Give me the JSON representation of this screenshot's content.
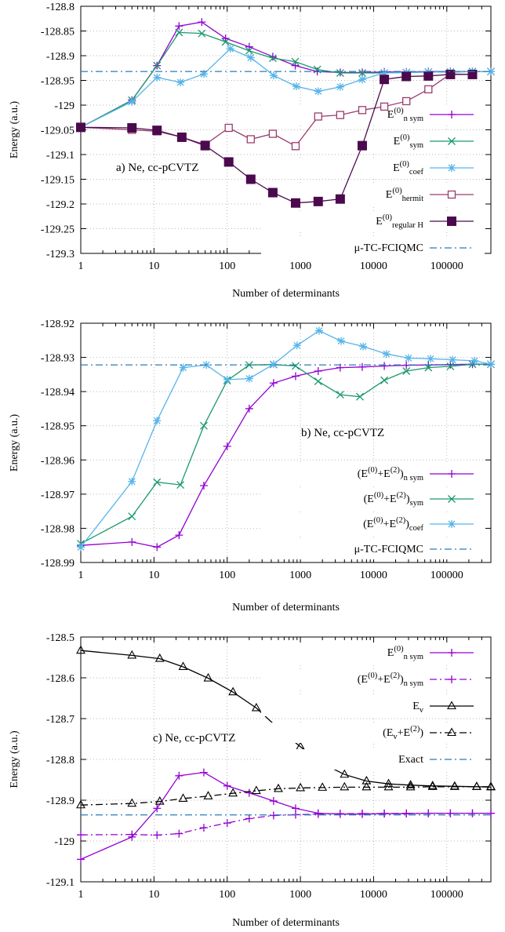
{
  "colors": {
    "purple": "#9400d3",
    "green": "#1a9a6b",
    "lightblue": "#56b4e9",
    "brown": "#9b3c6d",
    "darkpurple": "#4b0a4d",
    "dashblue": "#2b7bb9",
    "black": "#000000",
    "grid": "#a0a0a0"
  },
  "chart_data": [
    {
      "type": "line",
      "panel": "a",
      "annotation": "a) Ne, cc-pCVTZ",
      "xlabel": "Number of determinants",
      "ylabel": "Energy (a.u.)",
      "xscale": "log",
      "xlim": [
        1,
        400000
      ],
      "ylim": [
        -129.3,
        -128.8
      ],
      "xticks": [
        {
          "v": 1,
          "label": "1"
        },
        {
          "v": 10,
          "label": "10"
        },
        {
          "v": 100,
          "label": "100"
        },
        {
          "v": 1000,
          "label": "1000"
        },
        {
          "v": 10000,
          "label": "10000"
        },
        {
          "v": 100000,
          "label": "100000"
        }
      ],
      "yticks": [
        {
          "v": -128.8,
          "label": "-128.8"
        },
        {
          "v": -128.85,
          "label": "-128.85"
        },
        {
          "v": -128.9,
          "label": "-128.9"
        },
        {
          "v": -128.95,
          "label": "-128.95"
        },
        {
          "v": -129.0,
          "label": "-129"
        },
        {
          "v": -129.05,
          "label": "-129.05"
        },
        {
          "v": -129.1,
          "label": "-129.1"
        },
        {
          "v": -129.15,
          "label": "-129.15"
        },
        {
          "v": -129.2,
          "label": "-129.2"
        },
        {
          "v": -129.25,
          "label": "-129.25"
        },
        {
          "v": -129.3,
          "label": "-129.3"
        }
      ],
      "grid": true,
      "legend_position": "right",
      "series": [
        {
          "base": "E",
          "sup": "(0)",
          "sub": "n sym",
          "color": "purple",
          "marker": "plus",
          "line": "solid",
          "x": [
            1,
            5,
            11,
            22,
            45,
            95,
            200,
            420,
            850,
            1700,
            3500,
            7000,
            14000,
            28000,
            56000,
            112000,
            224000,
            400000
          ],
          "y": [
            -129.045,
            -128.99,
            -128.92,
            -128.84,
            -128.832,
            -128.865,
            -128.882,
            -128.902,
            -128.92,
            -128.932,
            -128.934,
            -128.934,
            -128.933,
            -128.933,
            -128.932,
            -128.932,
            -128.932,
            -128.932
          ]
        },
        {
          "base": "E",
          "sup": "(0)",
          "sub": "sym",
          "color": "green",
          "marker": "x",
          "line": "solid",
          "x": [
            1,
            5,
            11,
            22,
            45,
            95,
            200,
            420,
            850,
            1700,
            3500,
            7000,
            14000,
            28000,
            56000,
            112000,
            224000,
            400000
          ],
          "y": [
            -129.045,
            -128.99,
            -128.92,
            -128.853,
            -128.855,
            -128.872,
            -128.89,
            -128.905,
            -128.912,
            -128.928,
            -128.935,
            -128.935,
            -128.935,
            -128.934,
            -128.933,
            -128.933,
            -128.932,
            -128.932
          ]
        },
        {
          "base": "E",
          "sup": "(0)",
          "sub": "coef",
          "color": "lightblue",
          "marker": "star",
          "line": "solid",
          "x": [
            1,
            5,
            11,
            23,
            48,
            110,
            210,
            430,
            880,
            1750,
            3500,
            7000,
            14000,
            28000,
            56000,
            112000,
            224000,
            400000
          ],
          "y": [
            -129.045,
            -128.993,
            -128.944,
            -128.954,
            -128.937,
            -128.886,
            -128.904,
            -128.94,
            -128.962,
            -128.972,
            -128.963,
            -128.948,
            -128.935,
            -128.934,
            -128.933,
            -128.933,
            -128.932,
            -128.932
          ]
        },
        {
          "base": "E",
          "sup": "(0)",
          "sub": "hermit",
          "color": "brown",
          "marker": "square-open",
          "line": "solid",
          "x": [
            1,
            5,
            11,
            24,
            50,
            105,
            210,
            420,
            860,
            1750,
            3500,
            7000,
            14000,
            28000,
            56000,
            112000,
            224000
          ],
          "y": [
            -129.045,
            -129.05,
            -129.053,
            -129.065,
            -129.08,
            -129.046,
            -129.069,
            -129.058,
            -129.083,
            -129.023,
            -129.02,
            -129.01,
            -129.003,
            -128.992,
            -128.968,
            -128.937,
            -128.938
          ]
        },
        {
          "base": "E",
          "sup": "(0)",
          "sub": "regular H",
          "color": "darkpurple",
          "marker": "square-filled",
          "line": "solid",
          "x": [
            1,
            5,
            11,
            24,
            50,
            105,
            210,
            420,
            860,
            1750,
            3500,
            7000,
            14000,
            28000,
            56000,
            112000,
            224000
          ],
          "y": [
            -129.045,
            -129.046,
            -129.051,
            -129.065,
            -129.082,
            -129.115,
            -129.15,
            -129.177,
            -129.198,
            -129.195,
            -129.19,
            -129.082,
            -128.948,
            -128.942,
            -128.941,
            -128.938,
            -128.938
          ]
        },
        {
          "base": "μ-TC-FCIQMC",
          "sup": "",
          "sub": "",
          "color": "dashblue",
          "marker": "none",
          "line": "dashdot",
          "hline": -128.932
        }
      ]
    },
    {
      "type": "line",
      "panel": "b",
      "annotation": "b) Ne, cc-pCVTZ",
      "xlabel": "Number of determinants",
      "ylabel": "Energy (a.u.)",
      "xscale": "log",
      "xlim": [
        1,
        400000
      ],
      "ylim": [
        -128.99,
        -128.92
      ],
      "xticks": [
        {
          "v": 1,
          "label": "1"
        },
        {
          "v": 10,
          "label": "10"
        },
        {
          "v": 100,
          "label": "100"
        },
        {
          "v": 1000,
          "label": "1000"
        },
        {
          "v": 10000,
          "label": "10000"
        },
        {
          "v": 100000,
          "label": "100000"
        }
      ],
      "yticks": [
        {
          "v": -128.92,
          "label": "-128.92"
        },
        {
          "v": -128.93,
          "label": "-128.93"
        },
        {
          "v": -128.94,
          "label": "-128.94"
        },
        {
          "v": -128.95,
          "label": "-128.95"
        },
        {
          "v": -128.96,
          "label": "-128.96"
        },
        {
          "v": -128.97,
          "label": "-128.97"
        },
        {
          "v": -128.98,
          "label": "-128.98"
        },
        {
          "v": -128.99,
          "label": "-128.99"
        }
      ],
      "grid": true,
      "legend_position": "bottom-right",
      "series": [
        {
          "base": "(E",
          "sup": "(0)",
          "mid": "+E",
          "sup2": "(2)",
          "close": ")",
          "sub": "n sym",
          "color": "purple",
          "marker": "plus",
          "line": "solid",
          "x": [
            1,
            5,
            11,
            22,
            48,
            100,
            200,
            430,
            860,
            1750,
            3500,
            7000,
            14000,
            28000,
            56000,
            112000,
            224000,
            400000
          ],
          "y": [
            -128.985,
            -128.984,
            -128.9855,
            -128.982,
            -128.9675,
            -128.956,
            -128.945,
            -128.9375,
            -128.9355,
            -128.934,
            -128.933,
            -128.9328,
            -128.9325,
            -128.9323,
            -128.9322,
            -128.9321,
            -128.932,
            -128.932
          ]
        },
        {
          "base": "(E",
          "sup": "(0)",
          "mid": "+E",
          "sup2": "(2)",
          "close": ")",
          "sub": "sym",
          "color": "green",
          "marker": "x",
          "line": "solid",
          "x": [
            1,
            5,
            11,
            23,
            48,
            100,
            200,
            430,
            860,
            1750,
            3500,
            6500,
            14000,
            28000,
            56000,
            112000,
            224000,
            400000
          ],
          "y": [
            -128.9845,
            -128.9765,
            -128.9665,
            -128.9673,
            -128.95,
            -128.9368,
            -128.9322,
            -128.9321,
            -128.9325,
            -128.937,
            -128.9409,
            -128.9415,
            -128.9367,
            -128.934,
            -128.933,
            -128.9326,
            -128.932,
            -128.932
          ]
        },
        {
          "base": "(E",
          "sup": "(0)",
          "mid": "+E",
          "sup2": "(2)",
          "close": ")",
          "sub": "coef",
          "color": "lightblue",
          "marker": "star",
          "line": "solid",
          "x": [
            1,
            5,
            11,
            25,
            52,
            100,
            200,
            430,
            900,
            1800,
            3600,
            7200,
            15000,
            30000,
            60000,
            120000,
            240000,
            400000
          ],
          "y": [
            -128.9855,
            -128.9663,
            -128.9485,
            -128.933,
            -128.9322,
            -128.9365,
            -128.9362,
            -128.932,
            -128.9265,
            -128.9222,
            -128.9252,
            -128.9268,
            -128.929,
            -128.9302,
            -128.9304,
            -128.9307,
            -128.931,
            -128.932
          ]
        },
        {
          "base": "μ-TC-FCIQMC",
          "sup": "",
          "sub": "",
          "color": "dashblue",
          "marker": "none",
          "line": "dashdot",
          "hline": -128.9322
        }
      ]
    },
    {
      "type": "line",
      "panel": "c",
      "annotation": "c) Ne, cc-pCVTZ",
      "xlabel": "Number of determinants",
      "ylabel": "Energy (a.u.)",
      "xscale": "log",
      "xlim": [
        1,
        400000
      ],
      "ylim": [
        -129.1,
        -128.5
      ],
      "xticks": [
        {
          "v": 1,
          "label": "1"
        },
        {
          "v": 10,
          "label": "10"
        },
        {
          "v": 100,
          "label": "100"
        },
        {
          "v": 1000,
          "label": "1000"
        },
        {
          "v": 10000,
          "label": "10000"
        },
        {
          "v": 100000,
          "label": "100000"
        }
      ],
      "yticks": [
        {
          "v": -128.5,
          "label": "-128.5"
        },
        {
          "v": -128.6,
          "label": "-128.6"
        },
        {
          "v": -128.7,
          "label": "-128.7"
        },
        {
          "v": -128.8,
          "label": "-128.8"
        },
        {
          "v": -128.9,
          "label": "-128.9"
        },
        {
          "v": -129.0,
          "label": "-129"
        },
        {
          "v": -129.1,
          "label": "-129.1"
        }
      ],
      "grid": true,
      "legend_position": "top-right",
      "series": [
        {
          "base": "E",
          "sup": "(0)",
          "sub": "n sym",
          "color": "purple",
          "marker": "plus",
          "line": "solid",
          "x": [
            1,
            5,
            11,
            22,
            48,
            100,
            200,
            430,
            860,
            1750,
            3500,
            7000,
            14000,
            28000,
            56000,
            112000,
            224000,
            400000
          ],
          "y": [
            -129.045,
            -128.99,
            -128.92,
            -128.84,
            -128.832,
            -128.865,
            -128.882,
            -128.902,
            -128.92,
            -128.932,
            -128.934,
            -128.934,
            -128.933,
            -128.933,
            -128.932,
            -128.932,
            -128.932,
            -128.932
          ]
        },
        {
          "base": "(E",
          "sup": "(0)",
          "mid": "+E",
          "sup2": "(2)",
          "close": ")",
          "sub": "n sym",
          "color": "purple",
          "marker": "plus",
          "line": "dashdot",
          "x": [
            1,
            5,
            11,
            22,
            48,
            100,
            200,
            430,
            860,
            1750,
            3500,
            7000,
            14000,
            28000,
            56000,
            112000,
            224000,
            400000
          ],
          "y": [
            -128.985,
            -128.984,
            -128.9855,
            -128.982,
            -128.9675,
            -128.956,
            -128.945,
            -128.9375,
            -128.9355,
            -128.934,
            -128.933,
            -128.9328,
            -128.9325,
            -128.9323,
            -128.9322,
            -128.9321,
            -128.932,
            -128.932
          ]
        },
        {
          "base": "E",
          "sup": "",
          "sub": "v",
          "color": "black",
          "marker": "triangle",
          "line": "solid",
          "x": [
            1,
            5,
            12,
            25,
            55,
            120,
            250,
            500,
            1000,
            2000,
            4000,
            8000,
            16000,
            32000,
            64000,
            128000,
            256000,
            400000
          ],
          "y": [
            -128.533,
            -128.545,
            -128.553,
            -128.573,
            -128.601,
            -128.635,
            -128.674,
            -128.724,
            -128.769,
            -128.81,
            -128.837,
            -128.853,
            -128.86,
            -128.863,
            -128.865,
            -128.866,
            -128.867,
            -128.868
          ]
        },
        {
          "base": "(E",
          "sup": "",
          "sub2": "v",
          "mid": "+E",
          "sup2": "(2)",
          "close": ")",
          "sub": "",
          "color": "black",
          "marker": "triangle",
          "line": "dashdot",
          "x": [
            1,
            5,
            12,
            25,
            55,
            120,
            250,
            500,
            1000,
            2000,
            4000,
            8000,
            16000,
            32000,
            64000,
            128000,
            256000,
            400000
          ],
          "y": [
            -128.912,
            -128.908,
            -128.903,
            -128.896,
            -128.89,
            -128.883,
            -128.877,
            -128.872,
            -128.87,
            -128.869,
            -128.868,
            -128.868,
            -128.868,
            -128.868,
            -128.867,
            -128.867,
            -128.867,
            -128.867
          ]
        },
        {
          "base": "Exact",
          "sup": "",
          "sub": "",
          "color": "dashblue",
          "marker": "none",
          "line": "dashdot",
          "hline": -128.936
        }
      ]
    }
  ]
}
